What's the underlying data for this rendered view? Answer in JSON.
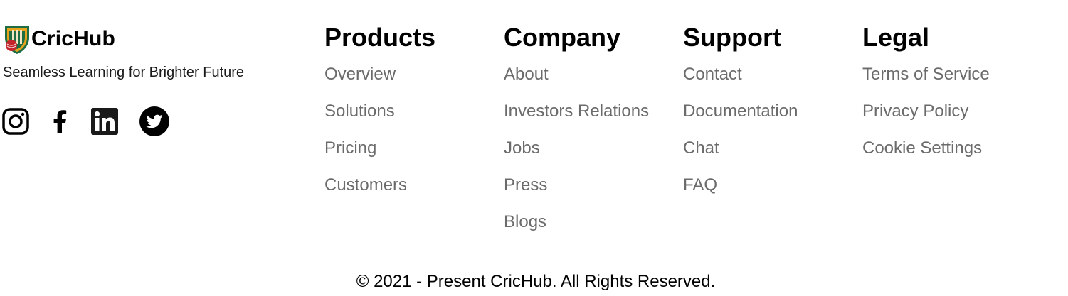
{
  "brand": {
    "name": "CricHub",
    "tagline": "Seamless Learning for Brighter Future",
    "logo_icon": "cricket-shield-logo"
  },
  "socials": [
    {
      "icon": "instagram-icon"
    },
    {
      "icon": "facebook-icon"
    },
    {
      "icon": "linkedin-icon"
    },
    {
      "icon": "twitter-icon"
    }
  ],
  "columns": {
    "products": {
      "title": "Products",
      "links": [
        "Overview",
        "Solutions",
        "Pricing",
        "Customers"
      ]
    },
    "company": {
      "title": "Company",
      "links": [
        "About",
        "Investors Relations",
        "Jobs",
        "Press",
        "Blogs"
      ]
    },
    "support": {
      "title": "Support",
      "links": [
        "Contact",
        "Documentation",
        "Chat",
        "FAQ"
      ]
    },
    "legal": {
      "title": "Legal",
      "links": [
        "Terms of Service",
        "Privacy Policy",
        "Cookie Settings"
      ]
    }
  },
  "footer": {
    "copyright": "© 2021 - Present CricHub. All Rights Reserved."
  },
  "colors": {
    "link": "#6b6b6b",
    "heading": "#000000",
    "background": "#ffffff"
  }
}
